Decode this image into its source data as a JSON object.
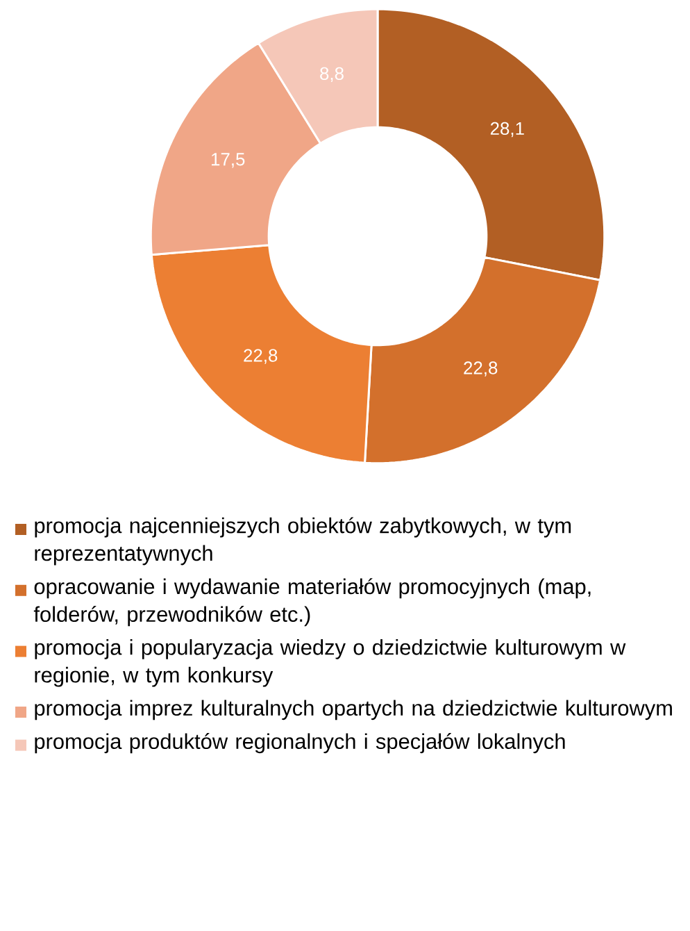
{
  "chart_data": {
    "type": "donut",
    "categories": [
      "promocja najcenniejszych obiektów zabytkowych, w tym reprezentatywnych",
      "opracowanie i wydawanie materiałów promocyjnych (map, folderów, przewodników etc.)",
      "promocja i popularyzacja wiedzy o dziedzictwie kulturowym w regionie, w tym konkursy",
      "promocja imprez kulturalnych opartych na dziedzictwie kulturowym",
      "promocja produktów regionalnych i  specjałów lokalnych"
    ],
    "values": [
      28.1,
      22.8,
      22.8,
      17.5,
      8.8
    ],
    "colors": [
      "#b25f24",
      "#d3702c",
      "#ec7f33",
      "#f0a687",
      "#f5c7b8"
    ],
    "value_labels": [
      "28,1",
      "22,8",
      "22,8",
      "17,5",
      "8,8"
    ],
    "legend": "bottom"
  }
}
